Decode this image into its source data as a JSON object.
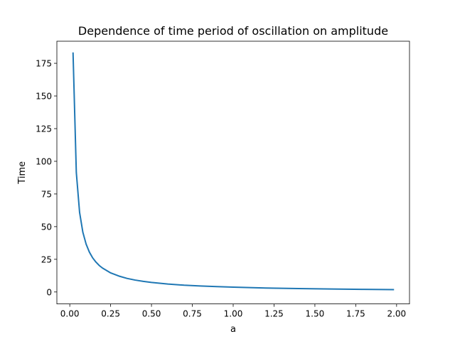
{
  "chart_data": {
    "type": "line",
    "title": "Dependence of time period of oscillation on amplitude",
    "xlabel": "a",
    "ylabel": "Time",
    "xlim": [
      -0.079,
      2.079
    ],
    "ylim": [
      -9.14,
      191.9
    ],
    "xticks": [
      0.0,
      0.25,
      0.5,
      0.75,
      1.0,
      1.25,
      1.5,
      1.75,
      2.0
    ],
    "xtick_labels": [
      "0.00",
      "0.25",
      "0.50",
      "0.75",
      "1.00",
      "1.25",
      "1.50",
      "1.75",
      "2.00"
    ],
    "yticks": [
      0,
      25,
      50,
      75,
      100,
      125,
      150,
      175
    ],
    "ytick_labels": [
      "0",
      "25",
      "50",
      "75",
      "100",
      "125",
      "150",
      "175"
    ],
    "grid": false,
    "legend": "none",
    "series": [
      {
        "color": "#1f77b4",
        "x": [
          0.02,
          0.04,
          0.06,
          0.08,
          0.1,
          0.12,
          0.14,
          0.16,
          0.18,
          0.2,
          0.25,
          0.3,
          0.35,
          0.4,
          0.45,
          0.5,
          0.6,
          0.7,
          0.8,
          0.9,
          1.0,
          1.2,
          1.4,
          1.6,
          1.8,
          1.98
        ],
        "y": [
          182.8,
          91.4,
          60.9,
          45.7,
          36.6,
          30.5,
          26.1,
          22.9,
          20.3,
          18.3,
          14.6,
          12.2,
          10.4,
          9.1,
          8.1,
          7.3,
          6.1,
          5.2,
          4.6,
          4.1,
          3.7,
          3.0,
          2.6,
          2.3,
          2.0,
          1.8
        ]
      }
    ]
  }
}
